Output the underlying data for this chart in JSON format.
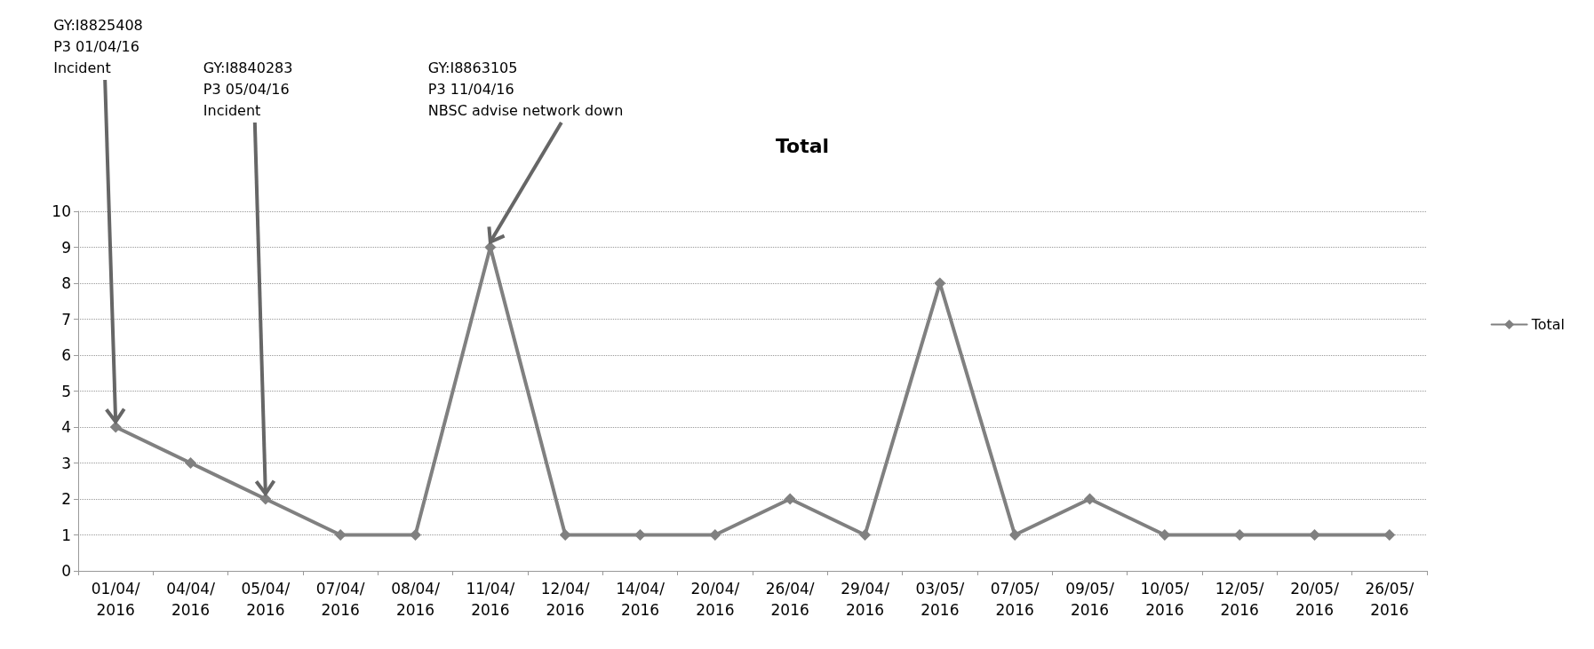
{
  "chart_data": {
    "type": "line",
    "title": "Total",
    "categories": [
      "01/04/2016",
      "04/04/2016",
      "05/04/2016",
      "07/04/2016",
      "08/04/2016",
      "11/04/2016",
      "12/04/2016",
      "14/04/2016",
      "20/04/2016",
      "26/04/2016",
      "29/04/2016",
      "03/05/2016",
      "07/05/2016",
      "09/05/2016",
      "10/05/2016",
      "12/05/2016",
      "20/05/2016",
      "26/05/2016"
    ],
    "series": [
      {
        "name": "Total",
        "color": "#808080",
        "values": [
          4,
          3,
          2,
          1,
          1,
          9,
          1,
          1,
          1,
          2,
          1,
          8,
          1,
          2,
          1,
          1,
          1,
          1
        ]
      }
    ],
    "ylim": [
      0,
      10
    ],
    "yticks": [
      0,
      1,
      2,
      3,
      4,
      5,
      6,
      7,
      8,
      9,
      10
    ],
    "grid": "y",
    "legend": "right",
    "marker": "diamond",
    "line_style": "solid",
    "annotations": [
      {
        "text": "GY:I8825408\nP3 01/04/16\nIncident",
        "x": "01/04/2016",
        "y": 4
      },
      {
        "text": "GY:I8840283\nP3 05/04/16\nIncident",
        "x": "05/04/2016",
        "y": 2
      },
      {
        "text": "GY:I8863105\nP3 11/04/16\nNBSC advise network down",
        "x": "11/04/2016",
        "y": 9
      }
    ]
  }
}
